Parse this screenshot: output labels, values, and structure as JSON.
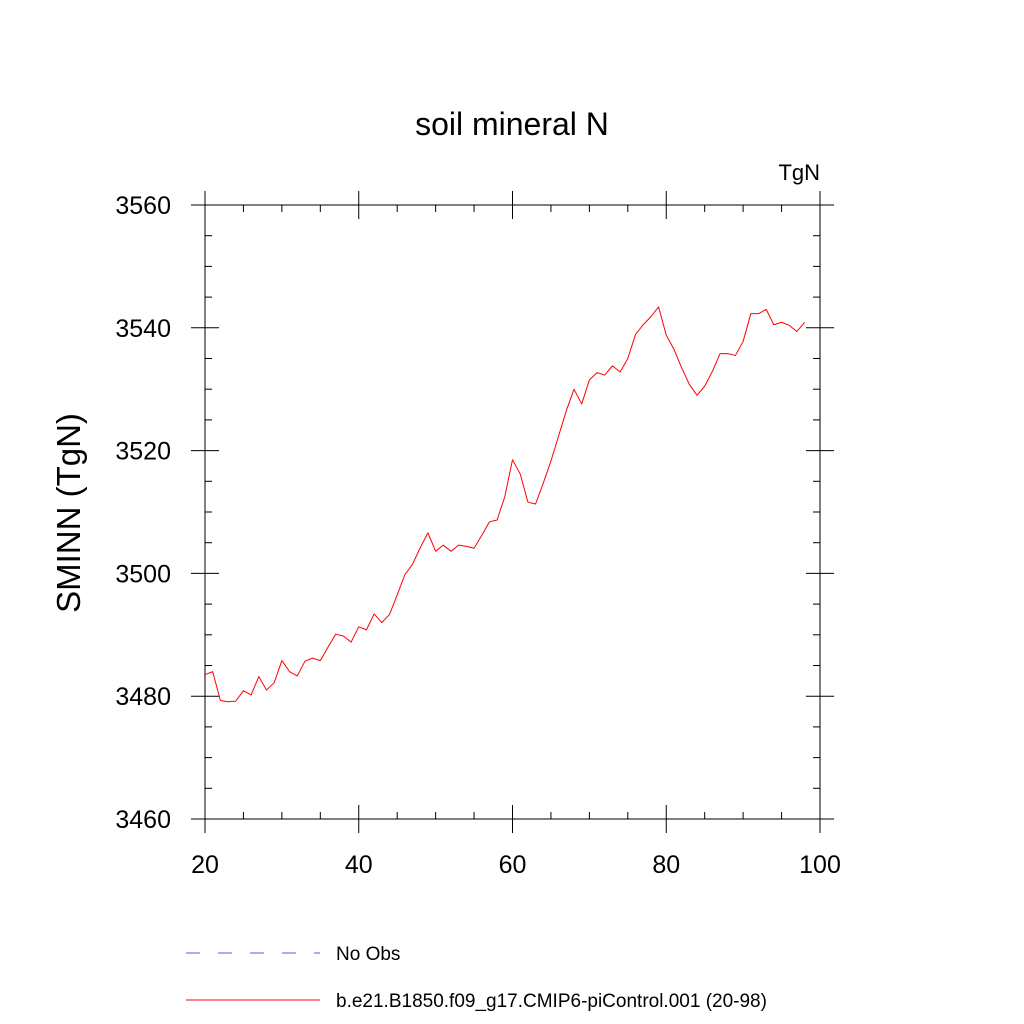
{
  "chart_data": {
    "type": "line",
    "title": "soil mineral N",
    "units_label": "TgN",
    "ylabel": "SMINN  (TgN)",
    "xlabel": "",
    "xlim": [
      20,
      100
    ],
    "ylim": [
      3460,
      3560
    ],
    "x_ticks": [
      20,
      40,
      60,
      80,
      100
    ],
    "y_ticks": [
      3460,
      3480,
      3500,
      3520,
      3540,
      3560
    ],
    "x_ticks_minor_step": 5,
    "y_ticks_minor_step": 5,
    "grid": false,
    "legend_position": "bottom",
    "legend": [
      {
        "name": "No Obs",
        "style": "dashed",
        "color": "#6a5acd"
      },
      {
        "name": "b.e21.B1850.f09_g17.CMIP6-piControl.001 (20-98)",
        "style": "solid",
        "color": "#ff0000"
      }
    ],
    "series": [
      {
        "name": "b.e21.B1850.f09_g17.CMIP6-piControl.001 (20-98)",
        "color": "#ff0000",
        "x": [
          20,
          21,
          22,
          23,
          24,
          25,
          26,
          27,
          28,
          29,
          30,
          31,
          32,
          33,
          34,
          35,
          36,
          37,
          38,
          39,
          40,
          41,
          42,
          43,
          44,
          45,
          46,
          47,
          48,
          49,
          50,
          51,
          52,
          53,
          54,
          55,
          56,
          57,
          58,
          59,
          60,
          61,
          62,
          63,
          64,
          65,
          66,
          67,
          68,
          69,
          70,
          71,
          72,
          73,
          74,
          75,
          76,
          77,
          78,
          79,
          80,
          81,
          82,
          83,
          84,
          85,
          86,
          87,
          88,
          89,
          90,
          91,
          92,
          93,
          94,
          95,
          96,
          97,
          98
        ],
        "values": [
          3483.5,
          3484.0,
          3479.3,
          3479.1,
          3479.2,
          3480.9,
          3480.2,
          3483.2,
          3481.0,
          3482.2,
          3485.8,
          3484.0,
          3483.3,
          3485.7,
          3486.2,
          3485.8,
          3488.0,
          3490.1,
          3489.8,
          3488.8,
          3491.3,
          3490.8,
          3493.4,
          3492.0,
          3493.3,
          3496.5,
          3499.8,
          3501.5,
          3504.2,
          3506.6,
          3503.6,
          3504.6,
          3503.6,
          3504.6,
          3504.4,
          3504.1,
          3506.2,
          3508.4,
          3508.7,
          3512.5,
          3518.5,
          3516.2,
          3511.6,
          3511.3,
          3514.7,
          3518.3,
          3522.4,
          3526.5,
          3530.0,
          3527.6,
          3531.5,
          3532.7,
          3532.3,
          3533.8,
          3532.8,
          3535.0,
          3538.9,
          3540.5,
          3541.8,
          3543.4,
          3538.8,
          3536.5,
          3533.5,
          3530.8,
          3529.0,
          3530.5,
          3532.9,
          3535.8,
          3535.8,
          3535.5,
          3537.8,
          3542.3,
          3542.3,
          3543.0,
          3540.5,
          3540.9,
          3540.4,
          3539.4,
          3540.9
        ]
      }
    ]
  }
}
